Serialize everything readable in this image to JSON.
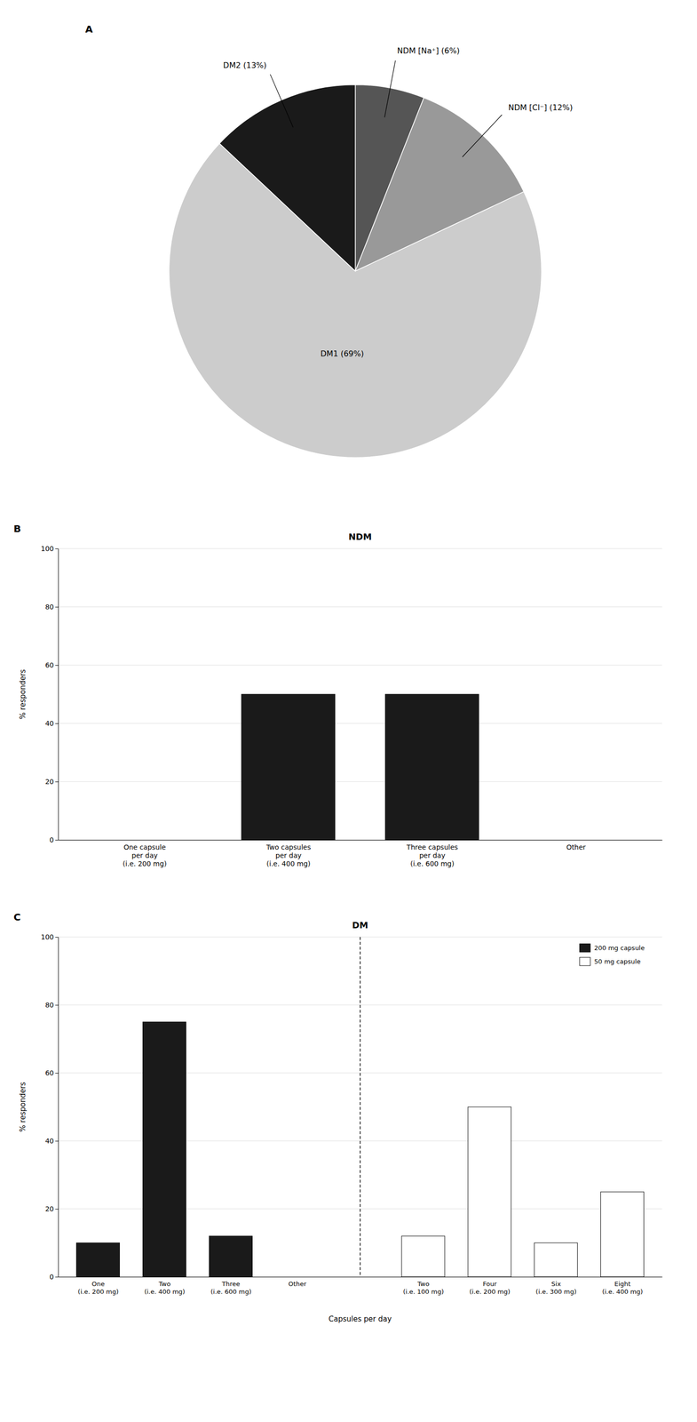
{
  "chart_data": [
    {
      "type": "pie",
      "annotations": [
        "A"
      ],
      "categories": [
        "NDM [Na⁺] (6%)",
        "NDM [Cl⁻] (12%)",
        "DM1 (69%)",
        "DM2 (13%)"
      ],
      "values": [
        6,
        12,
        69,
        13
      ],
      "colors": [
        "#555555",
        "#999999",
        "#cccccc",
        "#1a1a1a"
      ]
    },
    {
      "type": "bar",
      "title": "NDM",
      "annotations": [
        "B"
      ],
      "categories": [
        "One capsule\nper day\n(i.e. 200 mg)",
        "Two capsules\nper day\n(i.e. 400 mg)",
        "Three capsules\nper day\n(i.e. 600 mg)",
        "Other"
      ],
      "values": [
        0,
        50,
        50,
        0
      ],
      "color": "#1a1a1a",
      "ylabel": "% responders",
      "ylim": [
        0,
        100
      ],
      "yticks": [
        0,
        20,
        40,
        60,
        80,
        100
      ],
      "grid": true
    },
    {
      "type": "bar",
      "title": "DM",
      "annotations": [
        "C"
      ],
      "categories": [
        "One\n(i.e. 200 mg)",
        "Two\n(i.e. 400 mg)",
        "Three\n(i.e. 600 mg)",
        "Other",
        "Two\n(i.e. 100 mg)",
        "Four\n(i.e. 200 mg)",
        "Six\n(i.e. 300 mg)",
        "Eight\n(i.e. 400 mg)"
      ],
      "series": [
        {
          "name": "200 mg capsule",
          "color": "#1a1a1a",
          "values": [
            10,
            75,
            12,
            0,
            null,
            null,
            null,
            null
          ]
        },
        {
          "name": "50 mg capsule",
          "color": "#ffffff",
          "values": [
            null,
            null,
            null,
            null,
            12,
            50,
            10,
            25
          ]
        }
      ],
      "xlabel": "Capsules per day",
      "ylabel": "% responders",
      "ylim": [
        0,
        100
      ],
      "yticks": [
        0,
        20,
        40,
        60,
        80,
        100
      ],
      "grid": true,
      "legend": "upper right"
    }
  ]
}
